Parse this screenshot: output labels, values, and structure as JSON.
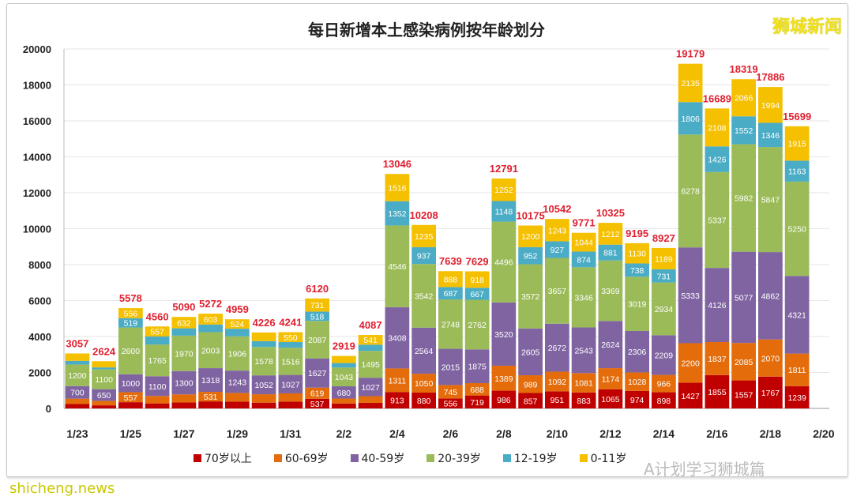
{
  "chart_data": {
    "type": "bar",
    "stacked": true,
    "title": "每日新增本土感染病例按年龄划分",
    "categories": [
      "1/23",
      "1/24",
      "1/25",
      "1/26",
      "1/27",
      "1/28",
      "1/29",
      "1/30",
      "1/31",
      "2/1",
      "2/2",
      "2/3",
      "2/4",
      "2/5",
      "2/6",
      "2/7",
      "2/8",
      "2/9",
      "2/10",
      "2/11",
      "2/12",
      "2/13",
      "2/14",
      "2/15",
      "2/16",
      "2/17",
      "2/18",
      "2/19",
      "2/20"
    ],
    "xtick_labels": [
      "1/23",
      "1/25",
      "1/27",
      "1/29",
      "1/31",
      "2/2",
      "2/4",
      "2/6",
      "2/8",
      "2/10",
      "2/12",
      "2/14",
      "2/16",
      "2/18",
      "2/20"
    ],
    "ylim": [
      0,
      20000
    ],
    "yticks": [
      0,
      2000,
      4000,
      6000,
      8000,
      10000,
      12000,
      14000,
      16000,
      18000,
      20000
    ],
    "grid": true,
    "legend_position": "bottom",
    "totals": [
      3057,
      2624,
      5578,
      4560,
      5090,
      5272,
      4959,
      4226,
      4241,
      6120,
      2919,
      4087,
      13046,
      10208,
      7639,
      7629,
      12791,
      10175,
      10542,
      9771,
      10325,
      9195,
      8927,
      19179,
      16689,
      18319,
      17886,
      15699,
      null
    ],
    "series": [
      {
        "name": "70岁以上",
        "color": "#c00000",
        "values": [
          242,
          171,
          346,
          278,
          328,
          390,
          383,
          321,
          381,
          537,
          275,
          309,
          913,
          880,
          556,
          719,
          986,
          857,
          951,
          883,
          1065,
          974,
          898,
          1427,
          1855,
          1557,
          1767,
          1239,
          null
        ]
      },
      {
        "name": "60-69岁",
        "color": "#e46c0a",
        "values": [
          300,
          250,
          557,
          413,
          451,
          531,
          479,
          467,
          456,
          619,
          275,
          372,
          1311,
          1050,
          745,
          688,
          1389,
          989,
          1092,
          1081,
          1174,
          1028,
          966,
          2200,
          1837,
          2085,
          2070,
          1811,
          null
        ]
      },
      {
        "name": "40-59岁",
        "color": "#8064a2",
        "values": [
          700,
          650,
          1000,
          1100,
          1300,
          1318,
          1243,
          1052,
          1027,
          1627,
          680,
          1027,
          3408,
          2564,
          2015,
          1875,
          3520,
          2605,
          2672,
          2543,
          2624,
          2306,
          2209,
          5333,
          4126,
          5077,
          4862,
          4321,
          null
        ]
      },
      {
        "name": "20-39岁",
        "color": "#9bbb59",
        "values": [
          1200,
          1100,
          2600,
          1765,
          1970,
          2003,
          1906,
          1578,
          1516,
          2087,
          1043,
          1495,
          4546,
          3542,
          2748,
          2762,
          4496,
          3572,
          3657,
          3346,
          3369,
          3019,
          2934,
          6278,
          5337,
          5982,
          5847,
          5250,
          null
        ]
      },
      {
        "name": "12-19岁",
        "color": "#4bacc6",
        "values": [
          204,
          110,
          519,
          447,
          409,
          427,
          424,
          328,
          311,
          518,
          252,
          343,
          1352,
          937,
          687,
          667,
          1148,
          952,
          927,
          874,
          881,
          738,
          731,
          1806,
          1426,
          1552,
          1346,
          1163,
          null
        ]
      },
      {
        "name": "0-11岁",
        "color": "#f5c000",
        "values": [
          411,
          344,
          556,
          557,
          632,
          603,
          524,
          480,
          550,
          731,
          394,
          541,
          1516,
          1235,
          888,
          918,
          1252,
          1200,
          1243,
          1044,
          1212,
          1130,
          1189,
          2135,
          2108,
          2066,
          1994,
          1915,
          null
        ]
      }
    ]
  },
  "logo_text": "狮城新闻",
  "watermark": "A计划学习狮城篇",
  "source_watermark": "shicheng.news"
}
